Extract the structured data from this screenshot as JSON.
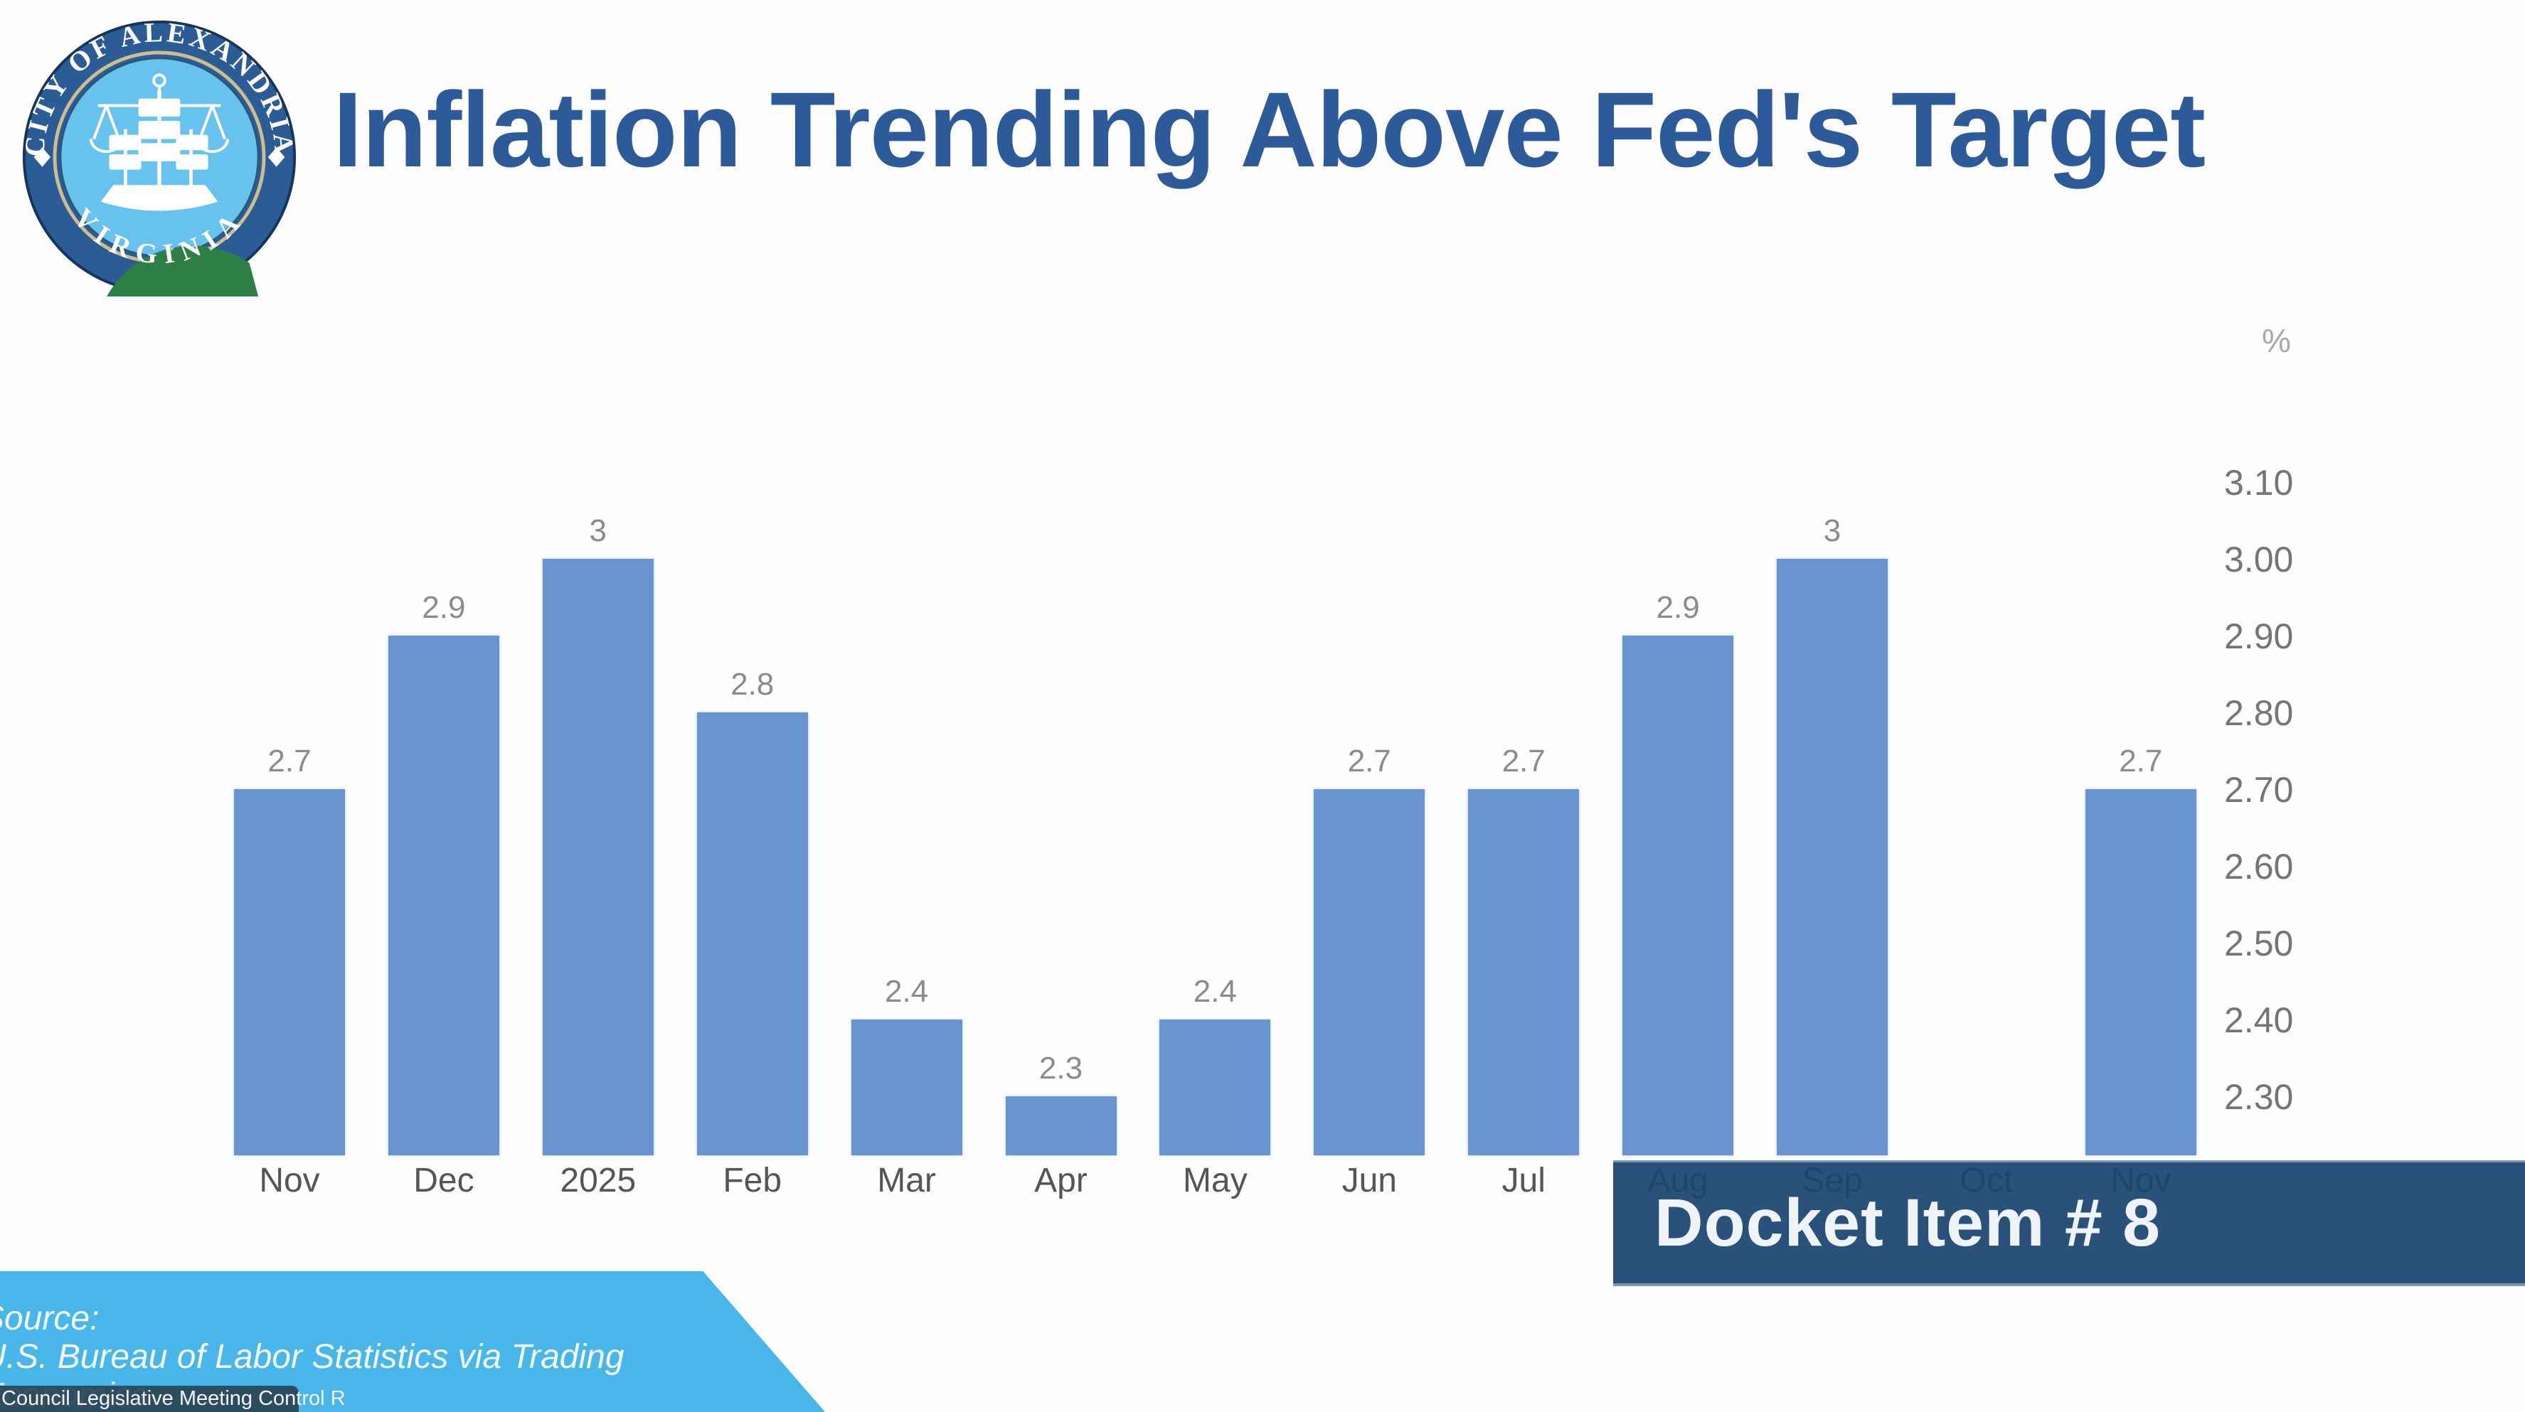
{
  "header": {
    "title": "Inflation Trending Above Fed's Target"
  },
  "seal": {
    "top_text": "CITY OF ALEXANDRIA",
    "bottom_text": "VIRGINIA"
  },
  "docket": {
    "label": "Docket Item # 8"
  },
  "source_banner": {
    "lines": [
      "Source:",
      "U.S. Bureau of Labor Statistics via Trading",
      "Economics"
    ]
  },
  "video_overlay": {
    "label": "Council Legislative Meeting Control R"
  },
  "chart_data": {
    "type": "bar",
    "title": "Inflation Trending Above Fed's Target",
    "unit_label": "%",
    "categories": [
      "Nov",
      "Dec",
      "2025",
      "Feb",
      "Mar",
      "Apr",
      "May",
      "Jun",
      "Jul",
      "Aug",
      "Sep",
      "Oct",
      "Nov"
    ],
    "values": [
      2.7,
      2.9,
      3,
      2.8,
      2.4,
      2.3,
      2.4,
      2.7,
      2.7,
      2.9,
      3,
      null,
      2.7
    ],
    "value_labels": [
      "2.7",
      "2.9",
      "3",
      "2.8",
      "2.4",
      "2.3",
      "2.4",
      "2.7",
      "2.7",
      "2.9",
      "3",
      "",
      "2.7"
    ],
    "yticks": [
      "3.10",
      "3.00",
      "2.90",
      "2.80",
      "2.70",
      "2.60",
      "2.50",
      "2.40",
      "2.30"
    ],
    "ylim": [
      2.223,
      3.15
    ],
    "grid": false,
    "legend": "none",
    "axis_side": "right",
    "note": "No bar shown for Oct (missing data month)",
    "colors": {
      "bar": "#6a94d0",
      "title_text": "#2d5a98",
      "docket_banner": "#194470",
      "docket_text": "#eef3f8",
      "source_banner": "#49b6e9",
      "axis_text": "#757575",
      "month_text": "#555555",
      "value_text": "#8b8b8b",
      "overlay_bg": "#283e4c",
      "seal_ring": "#2b5c95",
      "seal_sky": "#67c2ee",
      "seal_waves": "#2e7f45"
    }
  }
}
